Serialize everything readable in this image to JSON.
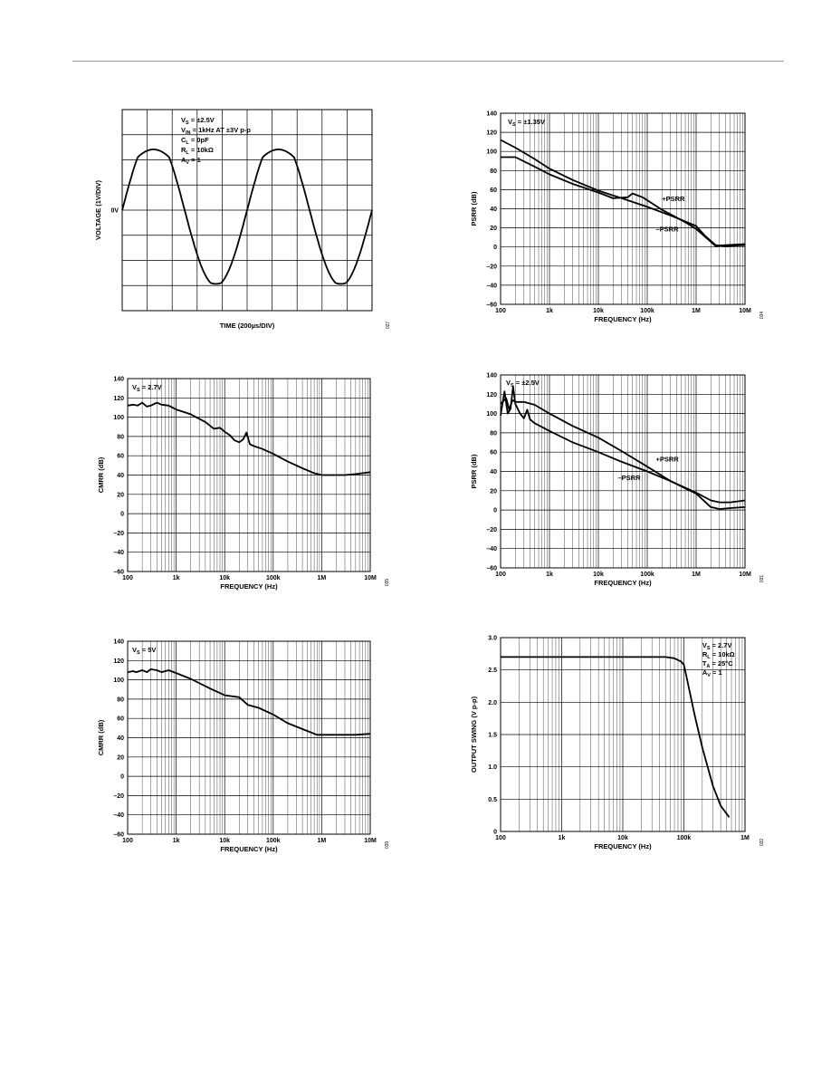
{
  "chart_data": [
    {
      "id": "g1",
      "type": "line",
      "xlabel": "TIME (200µs/DIV)",
      "ylabel": "VOLTAGE (1V/DIV)",
      "grid": "on",
      "xdiv": 10,
      "ydiv": 8,
      "y_ticks": [
        {
          "label": "0V",
          "value": 0
        }
      ],
      "x_ticks": [],
      "annotations": [
        "VS = ±2.5V",
        "VIN = 1kHz AT ±3V p-p",
        "CL = 0pF",
        "RL = 10kΩ",
        "AV = 1"
      ],
      "series": [
        {
          "shape": "clipped-sine",
          "frequency_hz": 1000,
          "amplitude_v": 3,
          "output_high_v": 2.1,
          "output_low_v": -2.9,
          "time_ms": [
            0,
            2
          ]
        }
      ],
      "code": "027"
    },
    {
      "id": "g2",
      "type": "line",
      "xlabel": "FREQUENCY (Hz)",
      "ylabel": "PSRR (dB)",
      "xscale": "log",
      "xlim": [
        100,
        10000000
      ],
      "ylim": [
        -60,
        140
      ],
      "x_ticks": [
        "100",
        "1k",
        "10k",
        "100k",
        "1M",
        "10M"
      ],
      "y_ticks": [
        "140",
        "120",
        "100",
        "80",
        "60",
        "40",
        "20",
        "0",
        "–20",
        "–40",
        "–60"
      ],
      "annotations": [
        "VS = ±1.35V",
        "+PSRR",
        "–PSRR"
      ],
      "series": [
        {
          "name": "+PSRR",
          "x": [
            100,
            200,
            500,
            1000,
            3000,
            10000,
            20000,
            40000,
            50000,
            80000,
            200000,
            600000,
            1000000,
            1500000,
            2500000,
            4000000,
            10000000
          ],
          "y": [
            94,
            94,
            84,
            76,
            66,
            57,
            51,
            52,
            56,
            52,
            39,
            26,
            19,
            11,
            1,
            2,
            3
          ]
        },
        {
          "name": "–PSRR",
          "x": [
            100,
            200,
            500,
            1000,
            3000,
            10000,
            30000,
            100000,
            300000,
            1000000,
            1500000,
            2500000,
            4000000,
            10000000
          ],
          "y": [
            112,
            104,
            92,
            82,
            70,
            59,
            51,
            42,
            33,
            22,
            12,
            2,
            1,
            2
          ]
        }
      ],
      "code": "034"
    },
    {
      "id": "g3",
      "type": "line",
      "xlabel": "FREQUENCY (Hz)",
      "ylabel": "CMRR (dB)",
      "xscale": "log",
      "xlim": [
        100,
        10000000
      ],
      "ylim": [
        -60,
        140
      ],
      "x_ticks": [
        "100",
        "1k",
        "10k",
        "100k",
        "1M",
        "10M"
      ],
      "y_ticks": [
        "140",
        "120",
        "100",
        "80",
        "60",
        "40",
        "20",
        "0",
        "–20",
        "–40",
        "–60"
      ],
      "annotations": [
        "VS = 2.7V"
      ],
      "series": [
        {
          "name": "CMRR",
          "x": [
            100,
            130,
            160,
            200,
            250,
            300,
            400,
            500,
            700,
            1000,
            2000,
            4000,
            6000,
            8000,
            10000,
            13000,
            16000,
            20000,
            24000,
            28000,
            33000,
            40000,
            60000,
            100000,
            200000,
            400000,
            700000,
            1000000,
            2000000,
            3000000,
            5000000,
            10000000
          ],
          "y": [
            112,
            113,
            112,
            115,
            111,
            112,
            115,
            113,
            112,
            108,
            103,
            95,
            88,
            89,
            85,
            81,
            76,
            74,
            77,
            84,
            72,
            70,
            67,
            62,
            54,
            47,
            42,
            40,
            40,
            40,
            41,
            43
          ]
        }
      ],
      "code": "035"
    },
    {
      "id": "g4",
      "type": "line",
      "xlabel": "FREQUENCY (Hz)",
      "ylabel": "PSRR (dB)",
      "xscale": "log",
      "xlim": [
        100,
        10000000
      ],
      "ylim": [
        -60,
        140
      ],
      "x_ticks": [
        "100",
        "1k",
        "10k",
        "100k",
        "1M",
        "10M"
      ],
      "y_ticks": [
        "140",
        "120",
        "100",
        "80",
        "60",
        "40",
        "20",
        "0",
        "–20",
        "–40",
        "–60"
      ],
      "annotations": [
        "VS = ±2.5V",
        "+PSRR",
        "–PSRR"
      ],
      "series": [
        {
          "name": "+PSRR",
          "x": [
            100,
            130,
            150,
            175,
            200,
            300,
            500,
            1000,
            3000,
            10000,
            30000,
            100000,
            300000,
            1000000,
            2000000,
            3000000,
            5000000,
            10000000
          ],
          "y": [
            110,
            116,
            104,
            114,
            112,
            112,
            109,
            100,
            87,
            75,
            61,
            45,
            30,
            17,
            3,
            1,
            2,
            3
          ]
        },
        {
          "name": "–PSRR",
          "x": [
            100,
            120,
            140,
            160,
            180,
            200,
            250,
            300,
            350,
            400,
            500,
            1000,
            3000,
            10000,
            30000,
            100000,
            300000,
            1000000,
            2000000,
            3000000,
            5000000,
            10000000
          ],
          "y": [
            98,
            123,
            100,
            105,
            128,
            110,
            100,
            95,
            104,
            94,
            90,
            82,
            70,
            60,
            50,
            40,
            30,
            18,
            10,
            8,
            8,
            10
          ]
        }
      ],
      "code": "031"
    },
    {
      "id": "g5",
      "type": "line",
      "xlabel": "FREQUENCY (Hz)",
      "ylabel": "CMRR (dB)",
      "xscale": "log",
      "xlim": [
        100,
        10000000
      ],
      "ylim": [
        -60,
        140
      ],
      "x_ticks": [
        "100",
        "1k",
        "10k",
        "100k",
        "1M",
        "10M"
      ],
      "y_ticks": [
        "140",
        "120",
        "100",
        "80",
        "60",
        "40",
        "20",
        "0",
        "–20",
        "–40",
        "–60"
      ],
      "annotations": [
        "VS = 5V"
      ],
      "series": [
        {
          "name": "CMRR",
          "x": [
            100,
            130,
            150,
            200,
            250,
            300,
            400,
            500,
            700,
            1000,
            2000,
            5000,
            10000,
            20000,
            30000,
            50000,
            100000,
            200000,
            500000,
            800000,
            1000000,
            2000000,
            5000000,
            10000000
          ],
          "y": [
            108,
            109,
            108,
            110,
            108,
            111,
            110,
            108,
            110,
            107,
            101,
            91,
            84,
            82,
            74,
            71,
            64,
            55,
            47,
            43,
            43,
            43,
            43,
            44
          ]
        }
      ],
      "code": "039"
    },
    {
      "id": "g6",
      "type": "line",
      "xlabel": "FREQUENCY (Hz)",
      "ylabel": "OUTPUT SWING (V p-p)",
      "xscale": "log",
      "xlim": [
        100,
        1000000
      ],
      "ylim": [
        0,
        3.0
      ],
      "x_ticks": [
        "100",
        "1k",
        "10k",
        "100k",
        "1M"
      ],
      "y_ticks": [
        "3.0",
        "2.5",
        "2.0",
        "1.5",
        "1.0",
        "0.5",
        "0"
      ],
      "annotations": [
        "VS = 2.7V",
        "RL = 10kΩ",
        "TA = 25°C",
        "AV = 1"
      ],
      "series": [
        {
          "name": "Output Swing",
          "x": [
            100,
            1000,
            10000,
            50000,
            70000,
            90000,
            100000,
            110000,
            150000,
            200000,
            300000,
            400000,
            550000
          ],
          "y": [
            2.7,
            2.7,
            2.7,
            2.7,
            2.68,
            2.63,
            2.58,
            2.4,
            1.8,
            1.3,
            0.7,
            0.4,
            0.22
          ]
        }
      ],
      "code": "032"
    }
  ]
}
